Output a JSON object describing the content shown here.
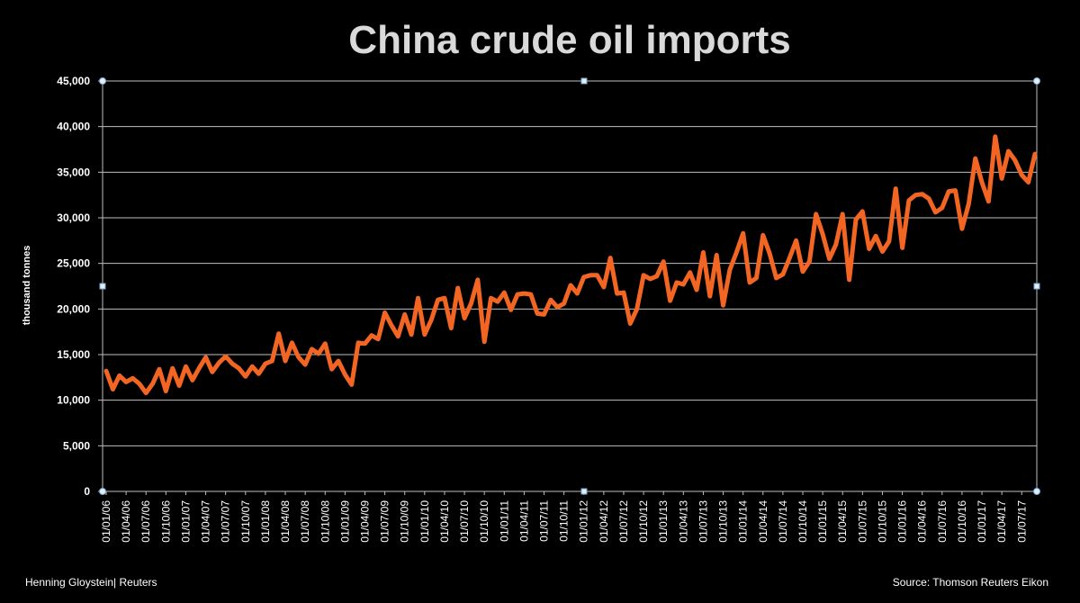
{
  "chart_data": {
    "type": "line",
    "title": "China crude oil imports",
    "ylabel": "thousand tonnes",
    "xlabel": "",
    "ylim": [
      0,
      45000
    ],
    "yticks": [
      "0",
      "5,000",
      "10,000",
      "15,000",
      "20,000",
      "25,000",
      "30,000",
      "35,000",
      "40,000",
      "45,000"
    ],
    "x_tick_labels": [
      "01/01/06",
      "01/04/06",
      "01/07/06",
      "01/10/06",
      "01/01/07",
      "01/04/07",
      "01/07/07",
      "01/10/07",
      "01/01/08",
      "01/04/08",
      "01/07/08",
      "01/10/08",
      "01/01/09",
      "01/04/09",
      "01/07/09",
      "01/10/09",
      "01/01/10",
      "01/04/10",
      "01/07/10",
      "01/10/10",
      "01/01/11",
      "01/04/11",
      "01/07/11",
      "01/10/11",
      "01/01/12",
      "01/04/12",
      "01/07/12",
      "01/10/12",
      "01/01/13",
      "01/04/13",
      "01/07/13",
      "01/10/13",
      "01/01/14",
      "01/04/14",
      "01/07/14",
      "01/10/14",
      "01/01/15",
      "01/04/15",
      "01/07/15",
      "01/10/15",
      "01/01/16",
      "01/04/16",
      "01/07/16",
      "01/10/16",
      "01/01/17",
      "01/04/17",
      "01/07/17"
    ],
    "x_start": "2006-01",
    "grid": true,
    "line_color": "#F26522",
    "series": [
      {
        "values": [
          13200,
          11200,
          12700,
          12000,
          12400,
          11800,
          10800,
          11800,
          13400,
          11000,
          13500,
          11600,
          13700,
          12200,
          13500,
          14700,
          13100,
          14100,
          14800,
          14000,
          13500,
          12600,
          13700,
          12900,
          14000,
          14300,
          17300,
          14300,
          16300,
          14700,
          13900,
          15600,
          15100,
          16200,
          13400,
          14300,
          12800,
          11700,
          16300,
          16200,
          17100,
          16700,
          19600,
          18200,
          17000,
          19400,
          17200,
          21200,
          17200,
          18800,
          21000,
          21200,
          17900,
          22300,
          19000,
          20600,
          23200,
          16400,
          21200,
          20800,
          21800,
          19900,
          21600,
          21700,
          21600,
          19500,
          19400,
          21000,
          20200,
          20600,
          22600,
          21700,
          23500,
          23700,
          23700,
          22400,
          25600,
          21700,
          21800,
          18400,
          20000,
          23700,
          23300,
          23600,
          25200,
          20900,
          22900,
          22700,
          24000,
          22100,
          26200,
          21400,
          25900,
          20400,
          24300,
          26200,
          28300,
          22900,
          23400,
          28100,
          26100,
          23400,
          23800,
          25600,
          27500,
          24100,
          25200,
          30400,
          28200,
          25500,
          27100,
          30400,
          23200,
          29800,
          30700,
          26600,
          28000,
          26300,
          27400,
          33200,
          26700,
          31900,
          32500,
          32600,
          32100,
          30600,
          31100,
          32900,
          33000,
          28800,
          31500,
          36500,
          33900,
          31800,
          38900,
          34300,
          37300,
          36300,
          34700,
          33900,
          37000
        ]
      }
    ]
  },
  "footer": {
    "left": "Henning Gloystein| Reuters",
    "right": "Source: Thomson Reuters Eikon"
  },
  "colors": {
    "background": "#000000",
    "line": "#F26522",
    "grid": "#bfbfbf",
    "title": "#d9d9d9"
  }
}
